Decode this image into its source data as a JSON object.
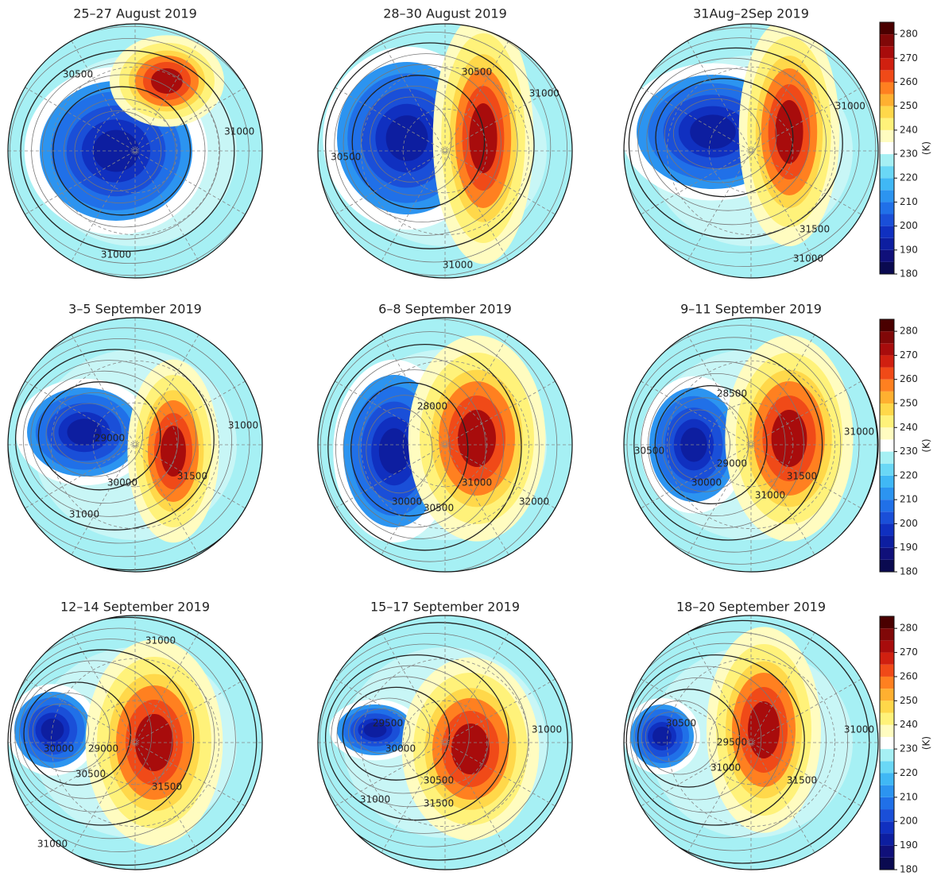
{
  "panels": [
    {
      "title": "25–27 August 2019",
      "contour_labels": [
        30500,
        31000,
        31000
      ]
    },
    {
      "title": "28–30 August 2019",
      "contour_labels": [
        30500,
        31000,
        30500,
        31000
      ]
    },
    {
      "title": "31Aug–2Sep 2019",
      "contour_labels": [
        31000,
        31500,
        31000
      ]
    },
    {
      "title": "3–5 September 2019",
      "contour_labels": [
        29000,
        30000,
        31500,
        31000,
        31000
      ]
    },
    {
      "title": "6–8 September 2019",
      "contour_labels": [
        28000,
        30500,
        31000,
        32000,
        30000
      ]
    },
    {
      "title": "9–11 September 2019",
      "contour_labels": [
        28500,
        30500,
        29000,
        30000,
        31000,
        31500,
        31000
      ]
    },
    {
      "title": "12–14 September 2019",
      "contour_labels": [
        31000,
        30000,
        29000,
        30500,
        31500,
        31000
      ]
    },
    {
      "title": "15–17 September 2019",
      "contour_labels": [
        29500,
        30000,
        30500,
        31500,
        31000,
        31000
      ]
    },
    {
      "title": "18–20 September 2019",
      "contour_labels": [
        30500,
        29500,
        31000,
        31500,
        31000
      ]
    }
  ],
  "colorbar": {
    "unit": "(K)",
    "vlim": [
      180,
      285
    ],
    "ticks": [
      180,
      190,
      200,
      210,
      220,
      230,
      240,
      250,
      260,
      270,
      280
    ],
    "levels": [
      180,
      185,
      190,
      195,
      200,
      205,
      210,
      215,
      220,
      225,
      230,
      235,
      240,
      245,
      250,
      255,
      260,
      265,
      270,
      275,
      280
    ],
    "colors": [
      "#0a0a50",
      "#10107a",
      "#0d1ea0",
      "#1030c0",
      "#1a4fd8",
      "#2070e8",
      "#2c94f0",
      "#40b8f5",
      "#6ad8f6",
      "#a6f0f4",
      "#ffffff",
      "#fffcc0",
      "#fff27a",
      "#ffd84a",
      "#ffb030",
      "#ff8020",
      "#f04a18",
      "#d02010",
      "#a80c0c",
      "#800808",
      "#4a0000"
    ]
  }
}
